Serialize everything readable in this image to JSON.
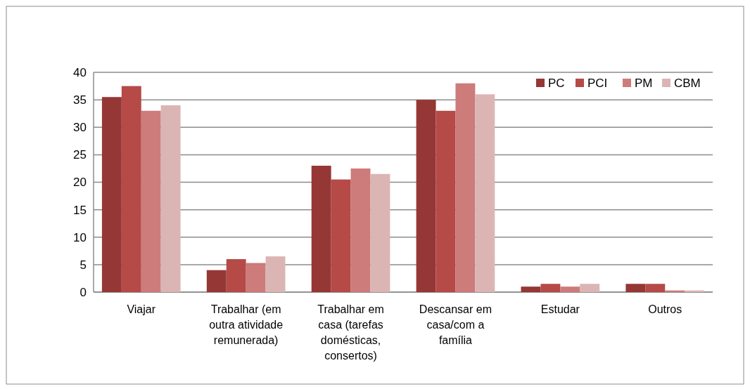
{
  "chart_data": {
    "type": "bar",
    "categories": [
      "Viajar",
      "Trabalhar (em outra atividade remunerada)",
      "Trabalhar em casa (tarefas domésticas, consertos)",
      "Descansar em casa/com a família",
      "Estudar",
      "Outros"
    ],
    "series": [
      {
        "name": "PC",
        "color": "#953735",
        "values": [
          35.5,
          4,
          23,
          35,
          1,
          1.5
        ]
      },
      {
        "name": "PCI",
        "color": "#b54a47",
        "values": [
          37.5,
          6,
          20.5,
          33,
          1.5,
          1.5
        ]
      },
      {
        "name": "PM",
        "color": "#cd7b7b",
        "values": [
          33,
          5.3,
          22.5,
          38,
          1,
          0.3
        ]
      },
      {
        "name": "CBM",
        "color": "#dbb5b4",
        "values": [
          34,
          6.5,
          21.5,
          36,
          1.5,
          0.3
        ]
      }
    ],
    "ylim": [
      0,
      40
    ],
    "yticks": [
      0,
      5,
      10,
      15,
      20,
      25,
      30,
      35,
      40
    ],
    "grid": "y",
    "legend": "top right"
  }
}
